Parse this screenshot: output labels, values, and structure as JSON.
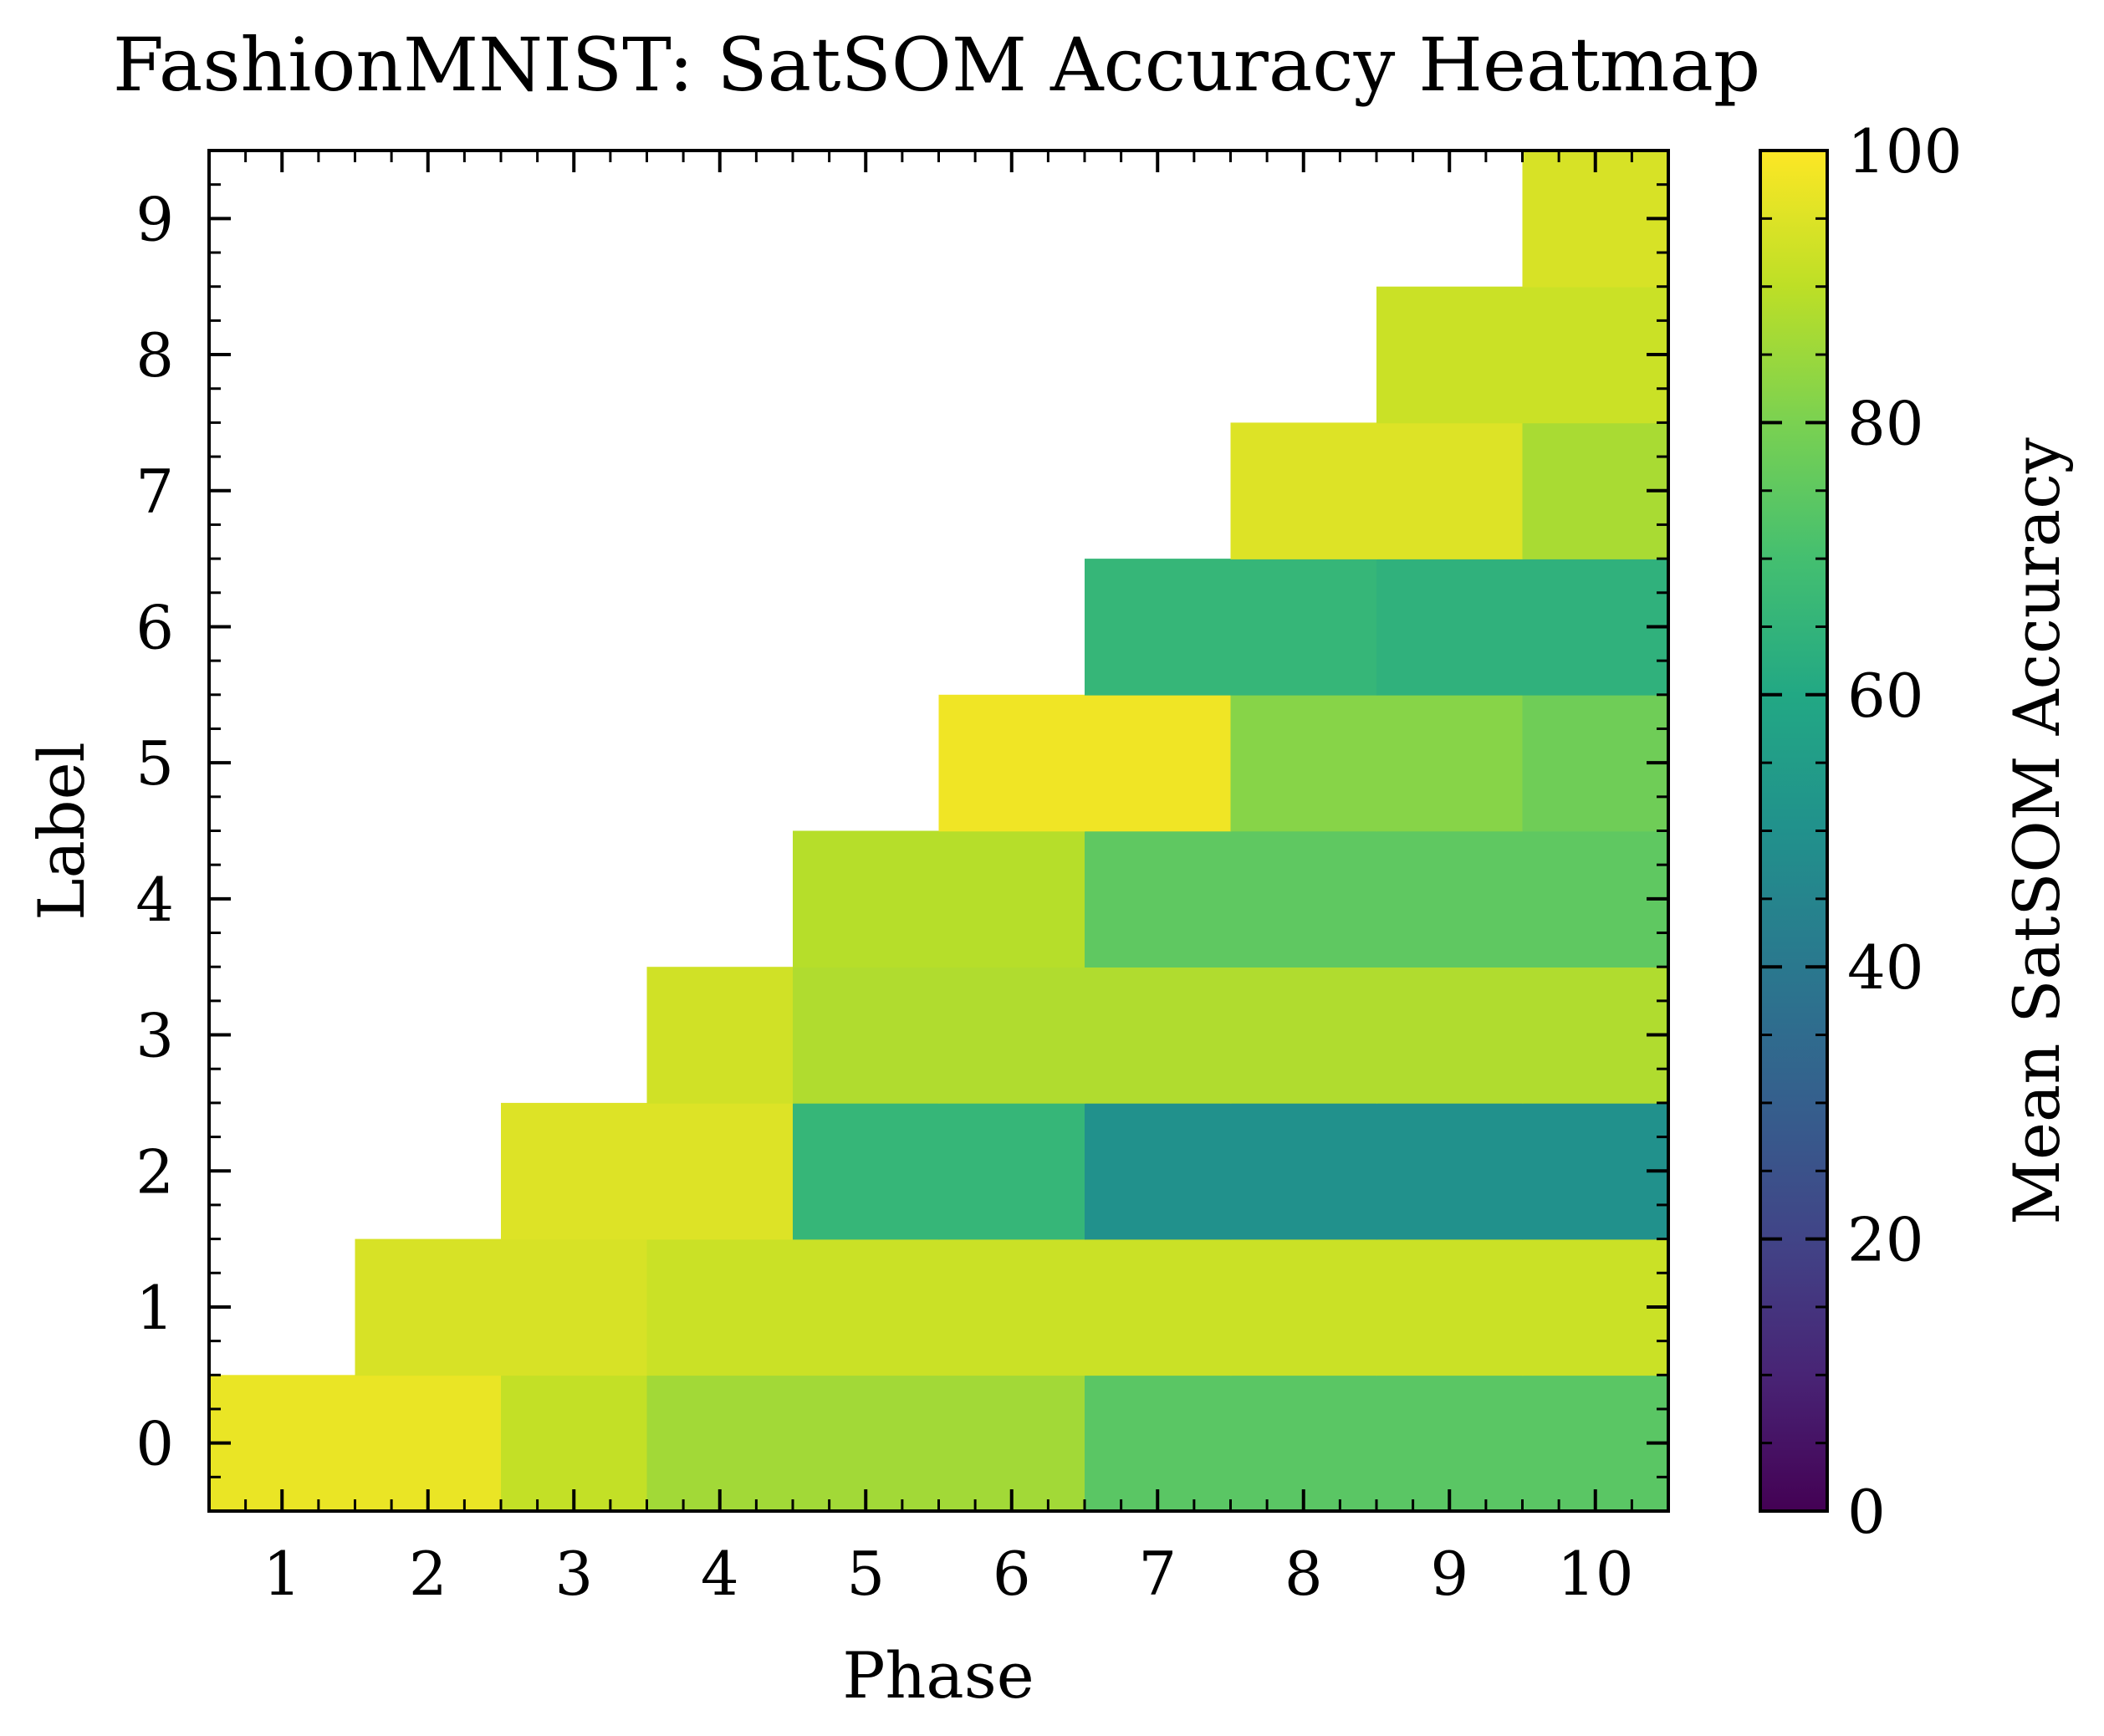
{
  "chart_data": {
    "type": "heatmap",
    "title": "FashionMNIST: SatSOM Accuracy Heatmap",
    "xlabel": "Phase",
    "ylabel": "Label",
    "x_categories": [
      "1",
      "2",
      "3",
      "4",
      "5",
      "6",
      "7",
      "8",
      "9",
      "10"
    ],
    "y_categories": [
      "0",
      "1",
      "2",
      "3",
      "4",
      "5",
      "6",
      "7",
      "8",
      "9"
    ],
    "values": [
      [
        97,
        97,
        91,
        86,
        86,
        86,
        74,
        74,
        74,
        74
      ],
      [
        null,
        94,
        94,
        92,
        92,
        92,
        92,
        92,
        92,
        92
      ],
      [
        null,
        null,
        95,
        95,
        66,
        66,
        50,
        50,
        50,
        50
      ],
      [
        null,
        null,
        null,
        93,
        88,
        88,
        88,
        88,
        88,
        88
      ],
      [
        null,
        null,
        null,
        null,
        89,
        89,
        75,
        75,
        75,
        75
      ],
      [
        null,
        null,
        null,
        null,
        null,
        98,
        98,
        82,
        82,
        78
      ],
      [
        null,
        null,
        null,
        null,
        null,
        null,
        66,
        66,
        64,
        64
      ],
      [
        null,
        null,
        null,
        null,
        null,
        null,
        null,
        95,
        95,
        87
      ],
      [
        null,
        null,
        null,
        null,
        null,
        null,
        null,
        null,
        92,
        92
      ],
      [
        null,
        null,
        null,
        null,
        null,
        null,
        null,
        null,
        null,
        94
      ]
    ],
    "colorbar": {
      "label": "Mean SatSOM Accuracy",
      "range": [
        0,
        100
      ],
      "ticks": [
        "0",
        "20",
        "40",
        "60",
        "80",
        "100"
      ],
      "colormap": "viridis"
    }
  }
}
